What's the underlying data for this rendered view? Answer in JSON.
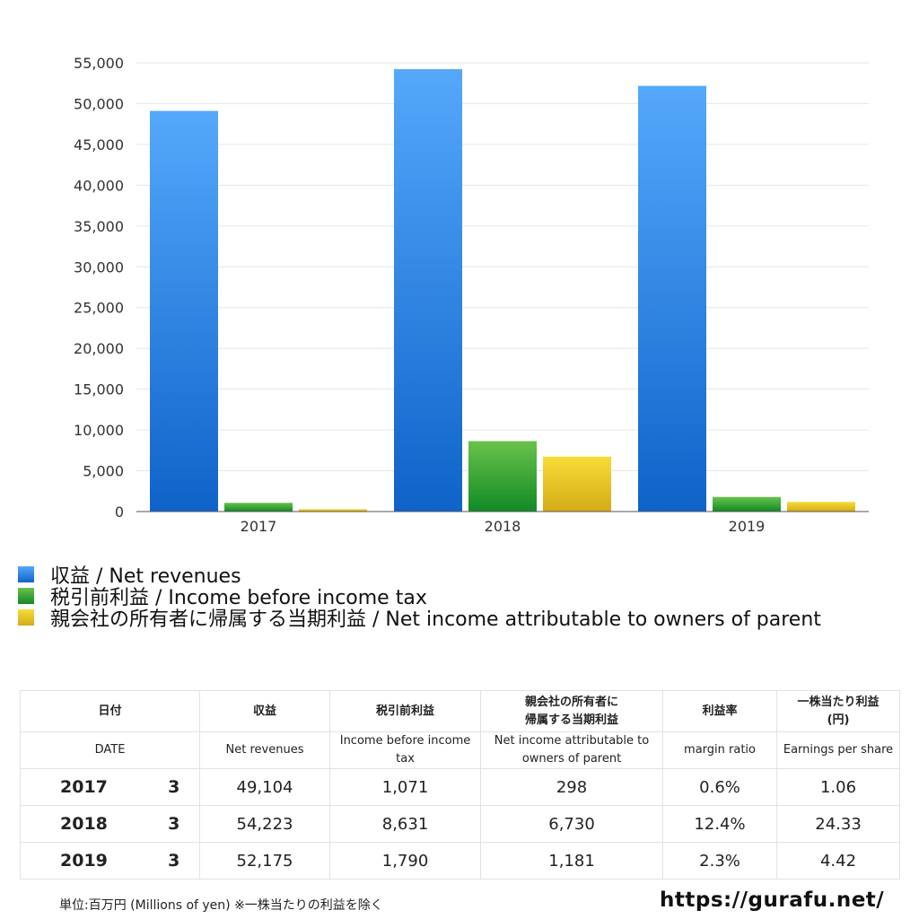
{
  "chart_data": {
    "type": "bar",
    "categories": [
      "2017",
      "2018",
      "2019"
    ],
    "series": [
      {
        "name": "収益 / Net revenues",
        "values": [
          49104,
          54223,
          52175
        ],
        "color": "#1a6fd6"
      },
      {
        "name": "税引前利益 / Income before income tax",
        "values": [
          1071,
          8631,
          1790
        ],
        "color": "#1f9a2c"
      },
      {
        "name": "親会社の所有者に帰属する当期利益 / Net income attributable to owners of parent",
        "values": [
          298,
          6730,
          1181
        ],
        "color": "#e6c21f"
      }
    ],
    "ylim": [
      0,
      55000
    ],
    "yticks": [
      "0",
      "5,000",
      "10,000",
      "15,000",
      "20,000",
      "25,000",
      "30,000",
      "35,000",
      "40,000",
      "45,000",
      "50,000",
      "55,000"
    ],
    "grid": true,
    "legend": "bottom-left"
  },
  "table": {
    "headers": {
      "date": "日付",
      "revenues": "収益",
      "income_before_tax": "税引前利益",
      "net_income_l1": "親会社の所有者に",
      "net_income_l2": "帰属する当期利益",
      "margin": "利益率",
      "eps_l1": "一株当たり利益",
      "eps_l2": "(円)"
    },
    "subheaders": {
      "date": "DATE",
      "revenues": "Net revenues",
      "income_before_tax": "Income before income tax",
      "net_income": "Net income attributable to owners of parent",
      "margin": "margin ratio",
      "eps": "Earnings per share"
    },
    "rows": [
      {
        "year": "2017",
        "month": "3",
        "revenues": "49,104",
        "income_before_tax": "1,071",
        "net_income": "298",
        "margin": "0.6%",
        "eps": "1.06"
      },
      {
        "year": "2018",
        "month": "3",
        "revenues": "54,223",
        "income_before_tax": "8,631",
        "net_income": "6,730",
        "margin": "12.4%",
        "eps": "24.33"
      },
      {
        "year": "2019",
        "month": "3",
        "revenues": "52,175",
        "income_before_tax": "1,790",
        "net_income": "1,181",
        "margin": "2.3%",
        "eps": "4.42"
      }
    ]
  },
  "footnote": "単位:百万円 (Millions of yen) ※一株当たりの利益を除く",
  "site_url": "https://gurafu.net/"
}
